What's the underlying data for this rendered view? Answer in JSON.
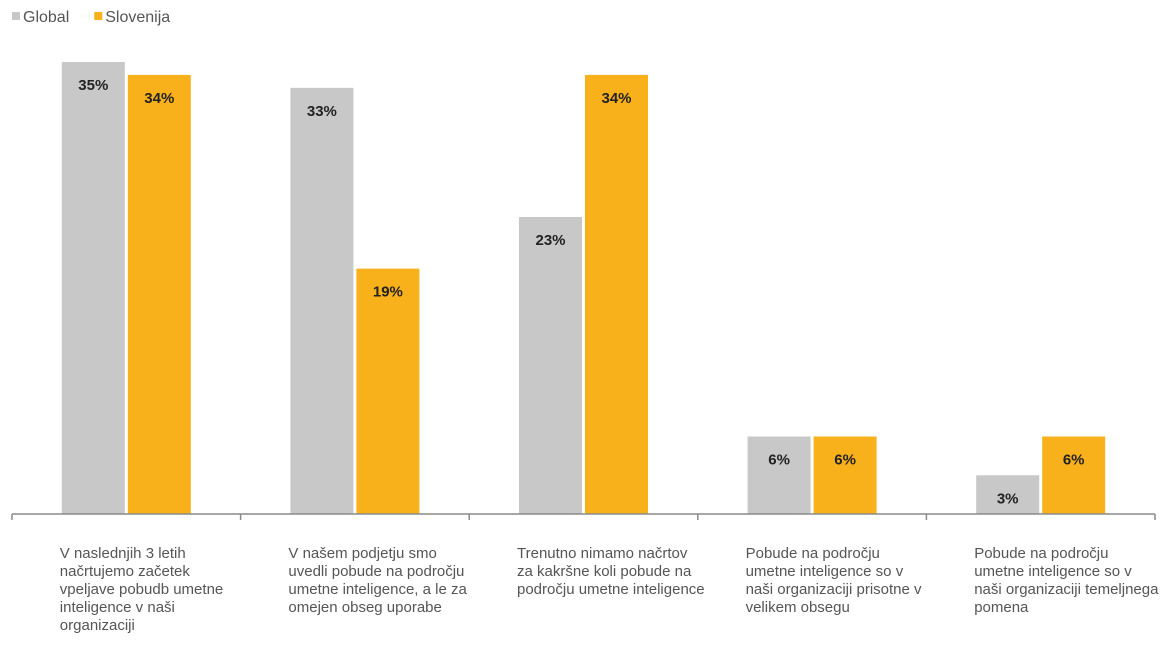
{
  "chart_data": {
    "type": "bar",
    "categories": [
      [
        "V naslednjih 3 letih",
        "načrtujemo začetek",
        "vpeljave pobudb umetne",
        "inteligence v naši",
        "organizaciji"
      ],
      [
        "V našem podjetju smo",
        "uvedli pobude na področju",
        "umetne inteligence, a le za",
        "omejen obseg uporabe"
      ],
      [
        "Trenutno nimamo načrtov",
        "za kakršne koli pobude na",
        "področju umetne inteligence"
      ],
      [
        "Pobude na področju",
        "umetne inteligence so v",
        "naši organizaciji prisotne v",
        "velikem obsegu"
      ],
      [
        "Pobude na področju",
        "umetne inteligence so v",
        "naši organizaciji temeljnega",
        "pomena"
      ]
    ],
    "series": [
      {
        "name": "Global",
        "values": [
          35,
          33,
          23,
          6,
          3
        ],
        "labels": [
          "35%",
          "33%",
          "23%",
          "6%",
          "3%"
        ],
        "color": "#c8c8c8"
      },
      {
        "name": "Slovenija",
        "values": [
          34,
          19,
          34,
          6,
          6
        ],
        "labels": [
          "34%",
          "19%",
          "34%",
          "6%",
          "6%"
        ],
        "color": "#f8b11a"
      }
    ],
    "ylim": [
      0,
      35
    ],
    "unit": "%",
    "legend": "top-left",
    "grid": false
  }
}
